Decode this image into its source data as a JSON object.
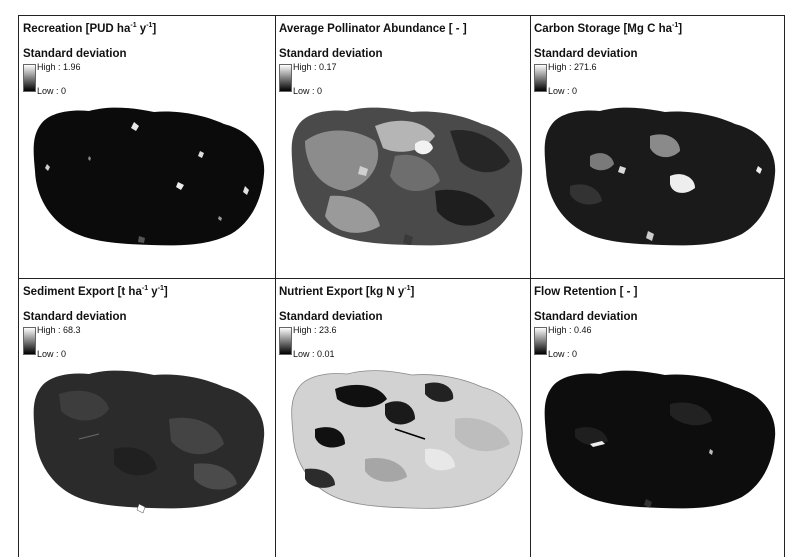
{
  "legend_heading": "Standard deviation",
  "panels": [
    {
      "title": "Recreation [PUD ha",
      "sup1": "-1",
      "mid": " y",
      "sup2": "-1",
      "end": "]",
      "high": "High : 1.96",
      "low": "Low : 0",
      "map_tone": "very dark"
    },
    {
      "title": "Average Pollinator Abundance [ - ]",
      "sup1": "",
      "mid": "",
      "sup2": "",
      "end": "",
      "high": "High : 0.17",
      "low": "Low : 0",
      "map_tone": "mixed gray"
    },
    {
      "title": "Carbon Storage [Mg C ha",
      "sup1": "-1",
      "mid": "",
      "sup2": "",
      "end": "]",
      "high": "High : 271.6",
      "low": "Low : 0",
      "map_tone": "dark"
    },
    {
      "title": "Sediment Export [t  ha",
      "sup1": "-1",
      "mid": " y",
      "sup2": "-1",
      "end": "]",
      "high": "High : 68.3",
      "low": "Low : 0",
      "map_tone": "dark gray"
    },
    {
      "title": "Nutrient Export [kg N y",
      "sup1": "-1",
      "mid": "",
      "sup2": "",
      "end": "]",
      "high": "High : 23.6",
      "low": "Low : 0.01",
      "map_tone": "light gray"
    },
    {
      "title": "Flow Retention [ - ]",
      "sup1": "",
      "mid": "",
      "sup2": "",
      "end": "",
      "high": "High : 0.46",
      "low": "Low : 0",
      "map_tone": "very dark"
    }
  ],
  "colors": {
    "frame": "#222222",
    "ramp_high": "#ffffff",
    "ramp_low": "#000000"
  }
}
